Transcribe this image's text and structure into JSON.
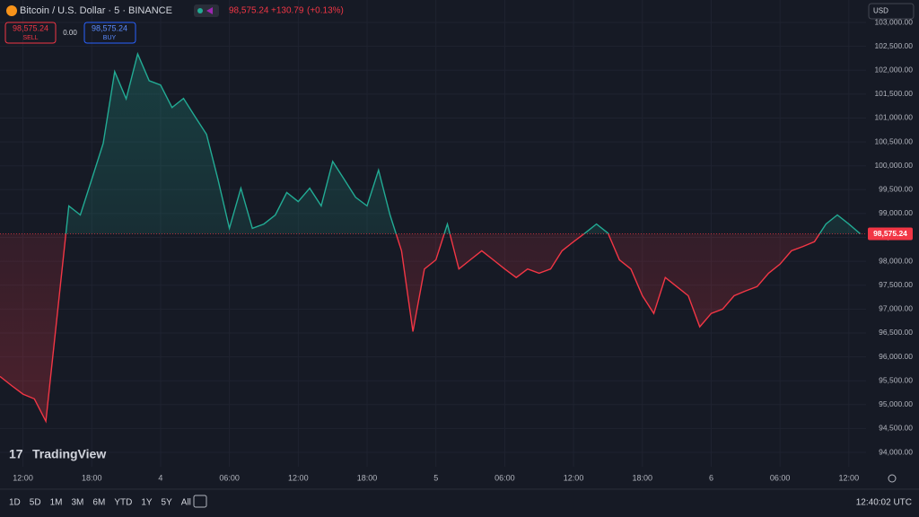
{
  "header": {
    "symbol": "Bitcoin / U.S. Dollar · 5 · BINANCE",
    "price": "98,575.24",
    "change": "+130.79",
    "change_pct": "(+0.13%)",
    "sell_price": "98,575.24",
    "sell": "SELL",
    "spread": "0.00",
    "buy_price": "98,575.24",
    "buy": "BUY",
    "currency": "USD",
    "logo": "TradingView"
  },
  "chart_data": {
    "type": "line",
    "x": [
      -2,
      -1,
      0,
      1,
      2,
      3,
      4,
      5,
      6,
      7,
      8,
      9,
      10,
      11,
      12,
      13,
      14,
      15,
      16,
      17,
      18,
      19,
      20,
      21,
      22,
      23,
      24,
      25,
      26,
      27,
      28,
      29,
      30,
      31,
      32,
      33,
      34,
      35,
      36,
      37,
      38,
      39,
      40,
      41,
      42,
      43,
      44,
      45,
      46,
      47,
      48,
      49,
      50,
      51,
      52,
      53,
      54,
      55,
      56,
      57,
      58,
      59,
      60,
      61,
      62,
      63,
      64,
      65,
      66,
      67,
      68,
      69,
      70,
      71,
      72,
      73
    ],
    "values": [
      95590,
      95400,
      95220,
      95120,
      94650,
      96900,
      99160,
      98970,
      99720,
      100470,
      101970,
      101400,
      102340,
      101780,
      101690,
      101220,
      101410,
      101030,
      100660,
      99720,
      98690,
      99530,
      98690,
      98780,
      98970,
      99440,
      99250,
      99530,
      99160,
      100090,
      99720,
      99340,
      99160,
      99910,
      98970,
      98220,
      96530,
      97840,
      98030,
      98780,
      97840,
      98030,
      98220,
      98030,
      97840,
      97660,
      97840,
      97750,
      97840,
      98220,
      98410,
      98590,
      98780,
      98590,
      98030,
      97840,
      97280,
      96910,
      97660,
      97470,
      97280,
      96630,
      96910,
      97000,
      97280,
      97380,
      97470,
      97750,
      97940,
      98220,
      98310,
      98410,
      98780,
      98970,
      98780,
      98575.24
    ],
    "baseline": {
      "value": 98575.24,
      "label": "98,575.24"
    },
    "up_color": "#22ab94",
    "down_color": "#f23645",
    "xlim": [
      -2,
      73.5
    ],
    "xticks": [
      {
        "value": 0,
        "label": "12:00"
      },
      {
        "value": 6,
        "label": "18:00"
      },
      {
        "value": 12,
        "label": "4"
      },
      {
        "value": 18,
        "label": "06:00"
      },
      {
        "value": 24,
        "label": "12:00"
      },
      {
        "value": 30,
        "label": "18:00"
      },
      {
        "value": 36,
        "label": "5"
      },
      {
        "value": 42,
        "label": "06:00"
      },
      {
        "value": 48,
        "label": "12:00"
      },
      {
        "value": 54,
        "label": "18:00"
      },
      {
        "value": 60,
        "label": "6"
      },
      {
        "value": 66,
        "label": "06:00"
      },
      {
        "value": 72,
        "label": "12:00"
      }
    ],
    "ylim": [
      93700,
      103470
    ],
    "yticks": [
      {
        "value": 94000,
        "label": "94,000.00"
      },
      {
        "value": 94500,
        "label": "94,500.00"
      },
      {
        "value": 95000,
        "label": "95,000.00"
      },
      {
        "value": 95500,
        "label": "95,500.00"
      },
      {
        "value": 96000,
        "label": "96,000.00"
      },
      {
        "value": 96500,
        "label": "96,500.00"
      },
      {
        "value": 97000,
        "label": "97,000.00"
      },
      {
        "value": 97500,
        "label": "97,500.00"
      },
      {
        "value": 98000,
        "label": "98,000.00"
      },
      {
        "value": 98500,
        "label": "98,500.00"
      },
      {
        "value": 99000,
        "label": "99,000.00"
      },
      {
        "value": 99500,
        "label": "99,500.00"
      },
      {
        "value": 100000,
        "label": "100,000.00"
      },
      {
        "value": 100500,
        "label": "100,500.00"
      },
      {
        "value": 101000,
        "label": "101,000.00"
      },
      {
        "value": 101500,
        "label": "101,500.00"
      },
      {
        "value": 102000,
        "label": "102,000.00"
      },
      {
        "value": 102500,
        "label": "102,500.00"
      },
      {
        "value": 103000,
        "label": "103,000.00"
      }
    ],
    "grid": true
  },
  "footer": {
    "ranges": [
      "1D",
      "5D",
      "1M",
      "3M",
      "6M",
      "YTD",
      "1Y",
      "5Y",
      "All"
    ],
    "clock": "12:40:02 UTC"
  }
}
